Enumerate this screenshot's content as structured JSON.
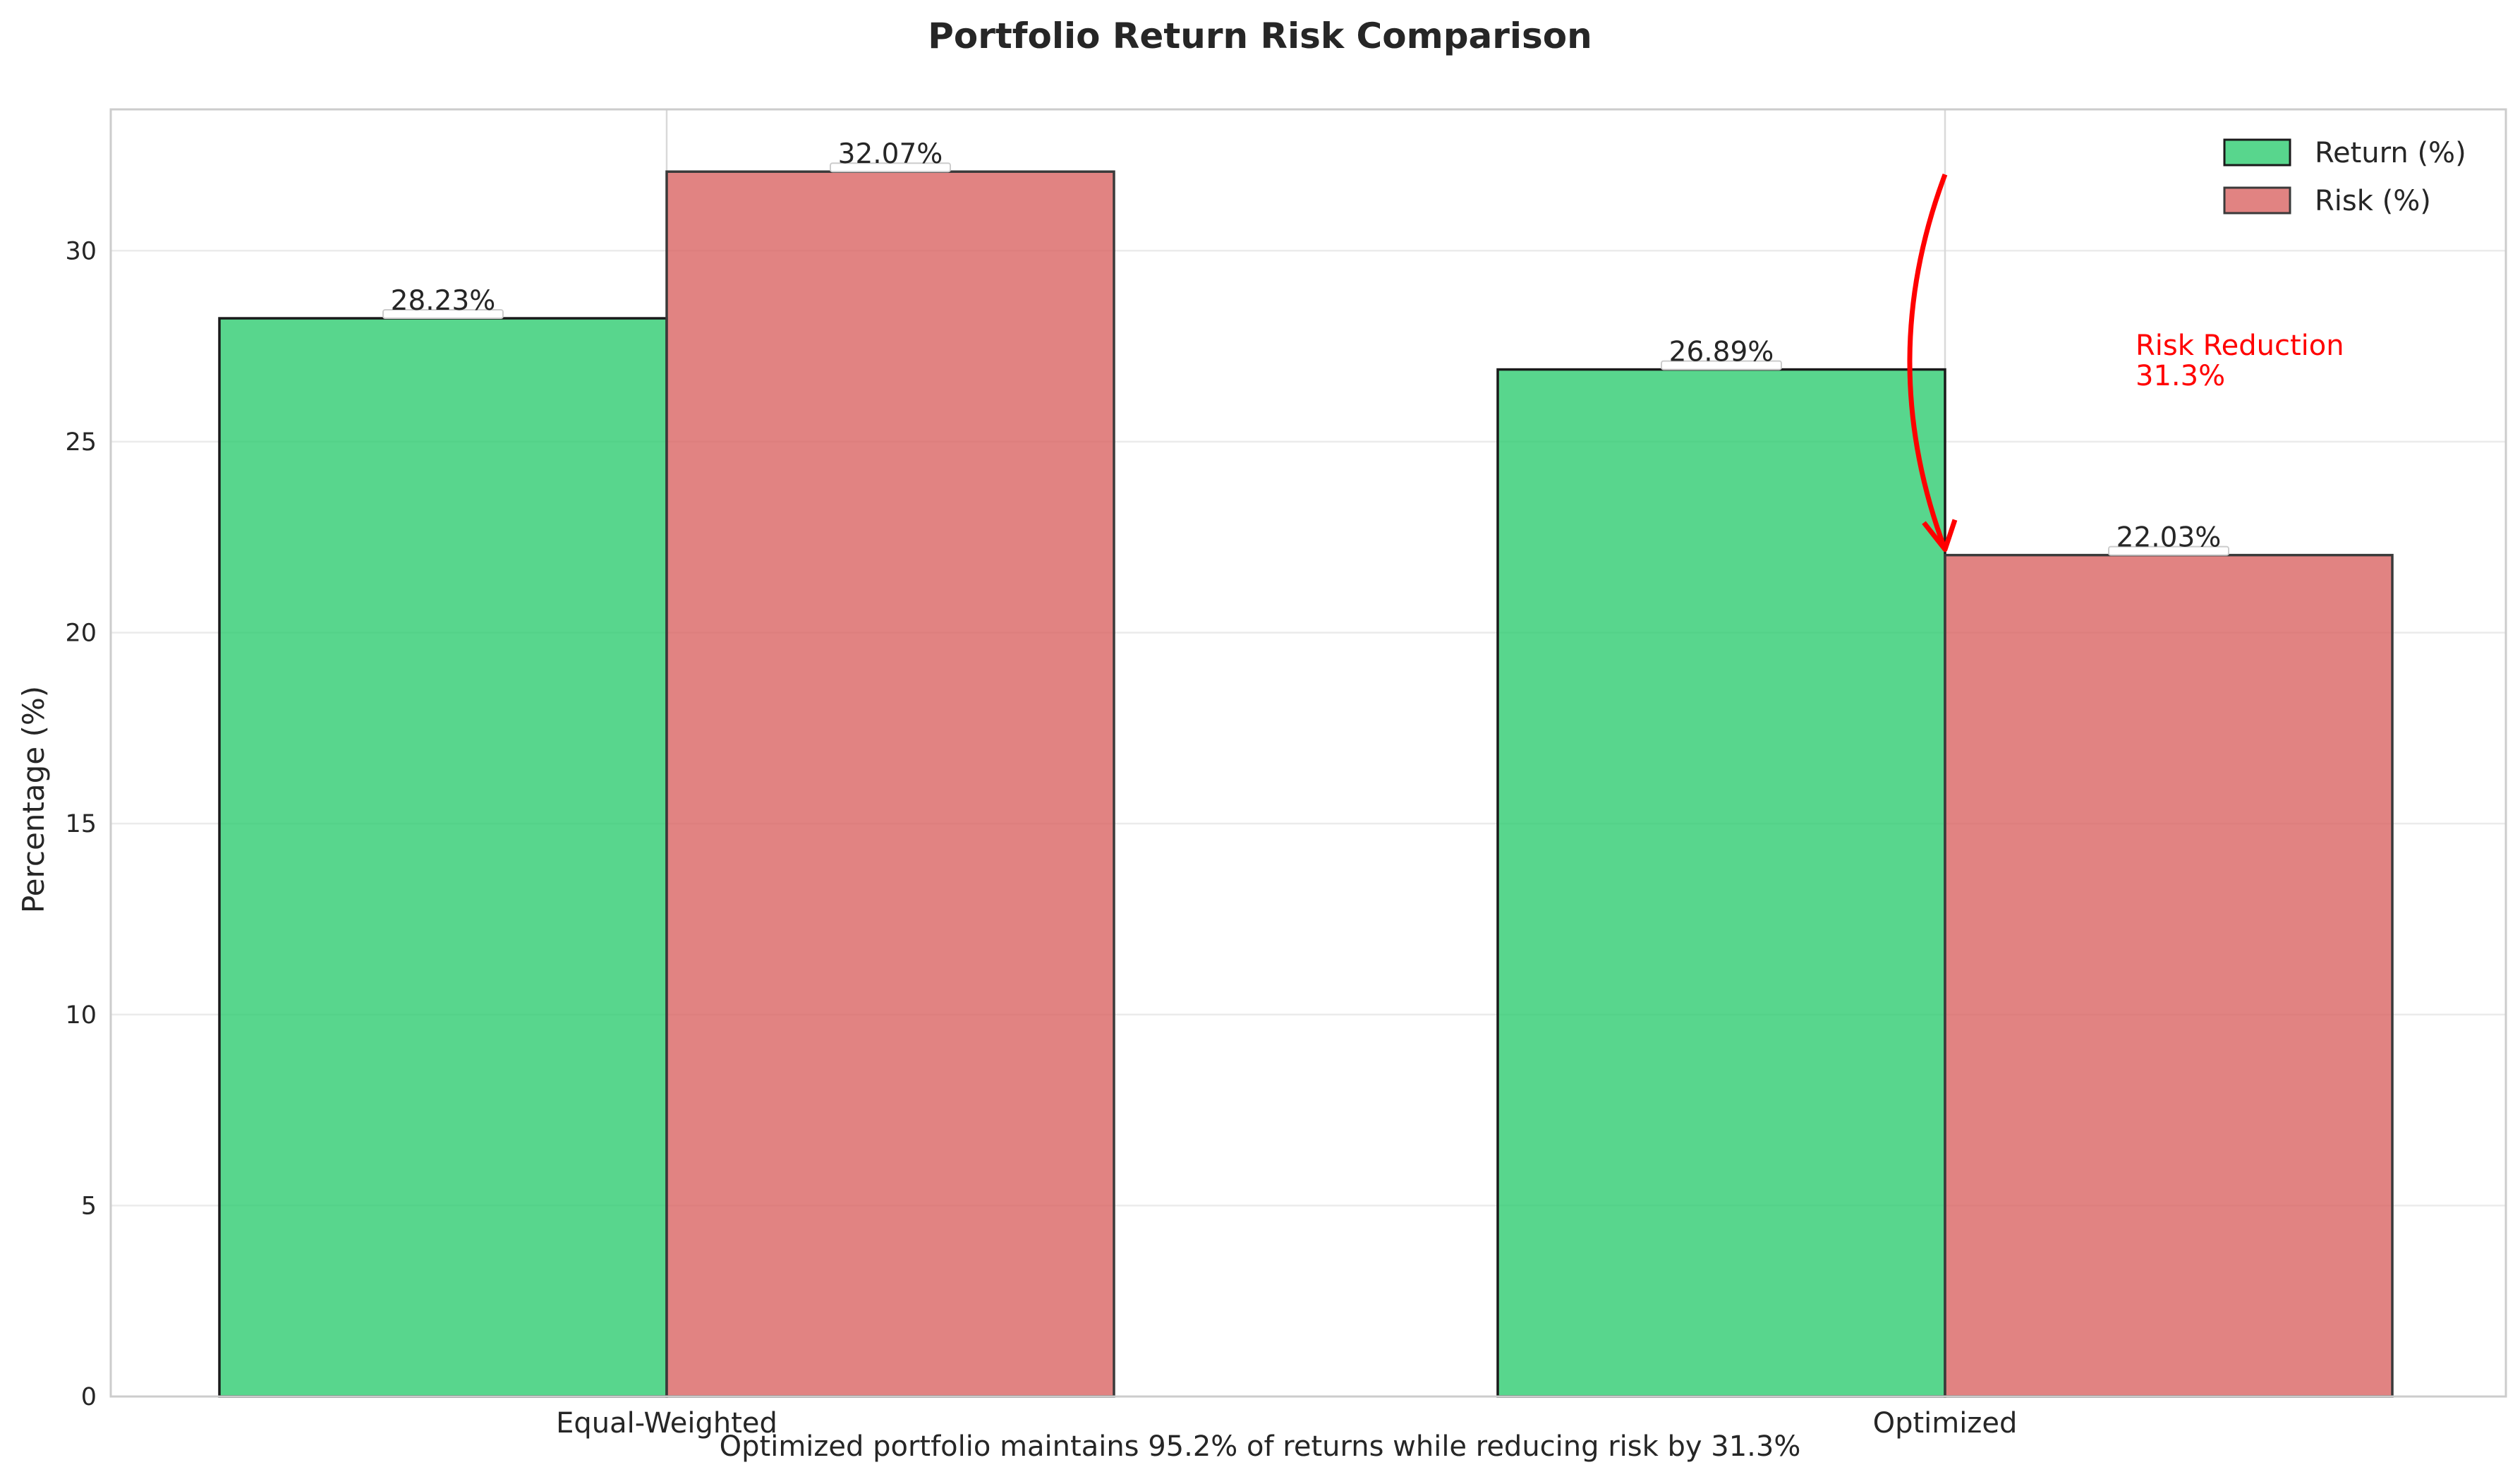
{
  "chart_data": {
    "type": "bar",
    "title": "Portfolio Return Risk Comparison",
    "xlabel": "",
    "ylabel": "Percentage (%)",
    "categories": [
      "Equal-Weighted",
      "Optimized"
    ],
    "series": [
      {
        "name": "Return (%)",
        "values": [
          28.23,
          26.89
        ],
        "color": "#2ecc71"
      },
      {
        "name": "Risk (%)",
        "values": [
          32.07,
          22.03
        ],
        "color": "#d9605f"
      }
    ],
    "value_labels": [
      [
        "28.23%",
        "26.89%"
      ],
      [
        "32.07%",
        "22.03%"
      ]
    ],
    "ylim": [
      0,
      33.7
    ],
    "yticks": [
      0,
      5,
      10,
      15,
      20,
      25,
      30
    ],
    "grid": true,
    "legend": "top-right",
    "annotation": {
      "text_lines": [
        "Risk Reduction",
        "31.3%"
      ],
      "color": "#ff0000",
      "from_value": 32.07,
      "to_value": 22.03
    },
    "caption": "Optimized portfolio maintains 95.2% of returns while reducing risk by 31.3%"
  }
}
